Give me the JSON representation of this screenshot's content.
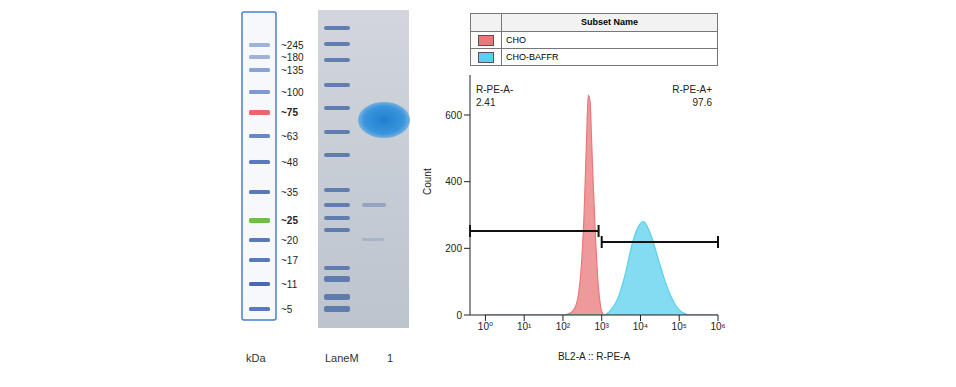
{
  "chart_data": {
    "type": "area",
    "x_label": "BL2-A :: R-PE-A",
    "y_label": "Count",
    "log": "x",
    "legend_title": "Subset Name",
    "x": [
      1,
      100,
      150,
      200,
      250,
      300,
      350,
      400,
      450,
      500,
      550,
      600,
      700,
      800,
      900,
      1000,
      1200,
      1500,
      2000,
      2500,
      3000,
      4000,
      5000,
      6000,
      8000,
      10000,
      12000,
      15000,
      20000,
      30000,
      50000,
      80000,
      100000,
      150000,
      200000,
      1000000
    ],
    "series": [
      {
        "name": "CHO",
        "color": "#e8787a",
        "values": [
          0,
          0,
          5,
          20,
          60,
          150,
          300,
          500,
          660,
          640,
          520,
          400,
          220,
          100,
          40,
          10,
          0,
          0,
          0,
          0,
          0,
          0,
          0,
          0,
          0,
          0,
          0,
          0,
          0,
          0,
          0,
          0,
          0,
          0,
          0,
          0
        ]
      },
      {
        "name": "CHO-BAFFR",
        "color": "#5ad0ec",
        "values": [
          0,
          0,
          0,
          0,
          0,
          0,
          0,
          0,
          0,
          0,
          0,
          0,
          0,
          0,
          0,
          0,
          0,
          8,
          25,
          45,
          70,
          120,
          170,
          210,
          255,
          275,
          280,
          265,
          230,
          160,
          80,
          30,
          15,
          3,
          0,
          0
        ]
      }
    ],
    "xlim": [
      0.4,
      1000000
    ],
    "xticks": [
      {
        "value": 1,
        "label": "10⁰"
      },
      {
        "value": 10,
        "label": "10¹"
      },
      {
        "value": 100,
        "label": "10²"
      },
      {
        "value": 1000,
        "label": "10³"
      },
      {
        "value": 10000,
        "label": "10⁴"
      },
      {
        "value": 100000,
        "label": "10⁵"
      },
      {
        "value": 1000000,
        "label": "10⁶"
      }
    ],
    "ylim": [
      0,
      720
    ],
    "yticks": [
      0,
      200,
      400,
      600
    ],
    "gates": [
      {
        "label": "R-PE-A-",
        "percent": 2.41,
        "range": [
          0.4,
          830
        ]
      },
      {
        "label": "R-PE-A+",
        "percent": 97.6,
        "range": [
          1000,
          1000000
        ]
      }
    ]
  },
  "ladder": {
    "unit": "kDa",
    "labels": [
      "~245",
      "~180",
      "~135",
      "~100",
      "~75",
      "~63",
      "~48",
      "~35",
      "~25",
      "~20",
      "~17",
      "~11",
      "~5"
    ],
    "colors": [
      "#9db2dc",
      "#9db2dc",
      "#8aa3d6",
      "#7f99d0",
      "#e8656a",
      "#6a86c6",
      "#5a78c0",
      "#5a78c0",
      "#6cc04a",
      "#5a78c0",
      "#5a78c0",
      "#4a68b8",
      "#5a78c0"
    ]
  },
  "gel": {
    "lanes": [
      "LaneM",
      "1"
    ]
  }
}
